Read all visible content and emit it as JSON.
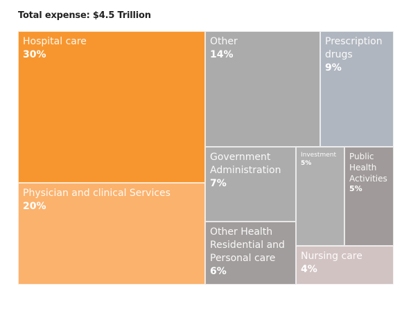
{
  "chart_data": {
    "type": "treemap",
    "title": "Total expense: $4.5 Trillion",
    "unit": "percent of total expense",
    "nodes": [
      {
        "label": "Hospital care",
        "value": 30,
        "value_label": "30%",
        "color": "#F7962F"
      },
      {
        "label": "Physician and clinical Services",
        "value": 20,
        "value_label": "20%",
        "color": "#FBB26D"
      },
      {
        "label": "Other",
        "value": 14,
        "value_label": "14%",
        "color": "#ABABAB"
      },
      {
        "label": "Prescription\ndrugs",
        "value": 9,
        "value_label": "9%",
        "color": "#B0B6BF"
      },
      {
        "label": "Government\nAdministration",
        "value": 7,
        "value_label": "7%",
        "color": "#ACACAC"
      },
      {
        "label": "Other Health\nResidential and\nPersonal care",
        "value": 6,
        "value_label": "6%",
        "color": "#A29D9D"
      },
      {
        "label": "Investment",
        "value": 5,
        "value_label": "5%",
        "color": "#B0B0B0"
      },
      {
        "label": "Public\nHealth\nActivities",
        "value": 5,
        "value_label": "5%",
        "color": "#A09A9A"
      },
      {
        "label": "Nursing care",
        "value": 4,
        "value_label": "4%",
        "color": "#D2C3C3"
      }
    ]
  }
}
